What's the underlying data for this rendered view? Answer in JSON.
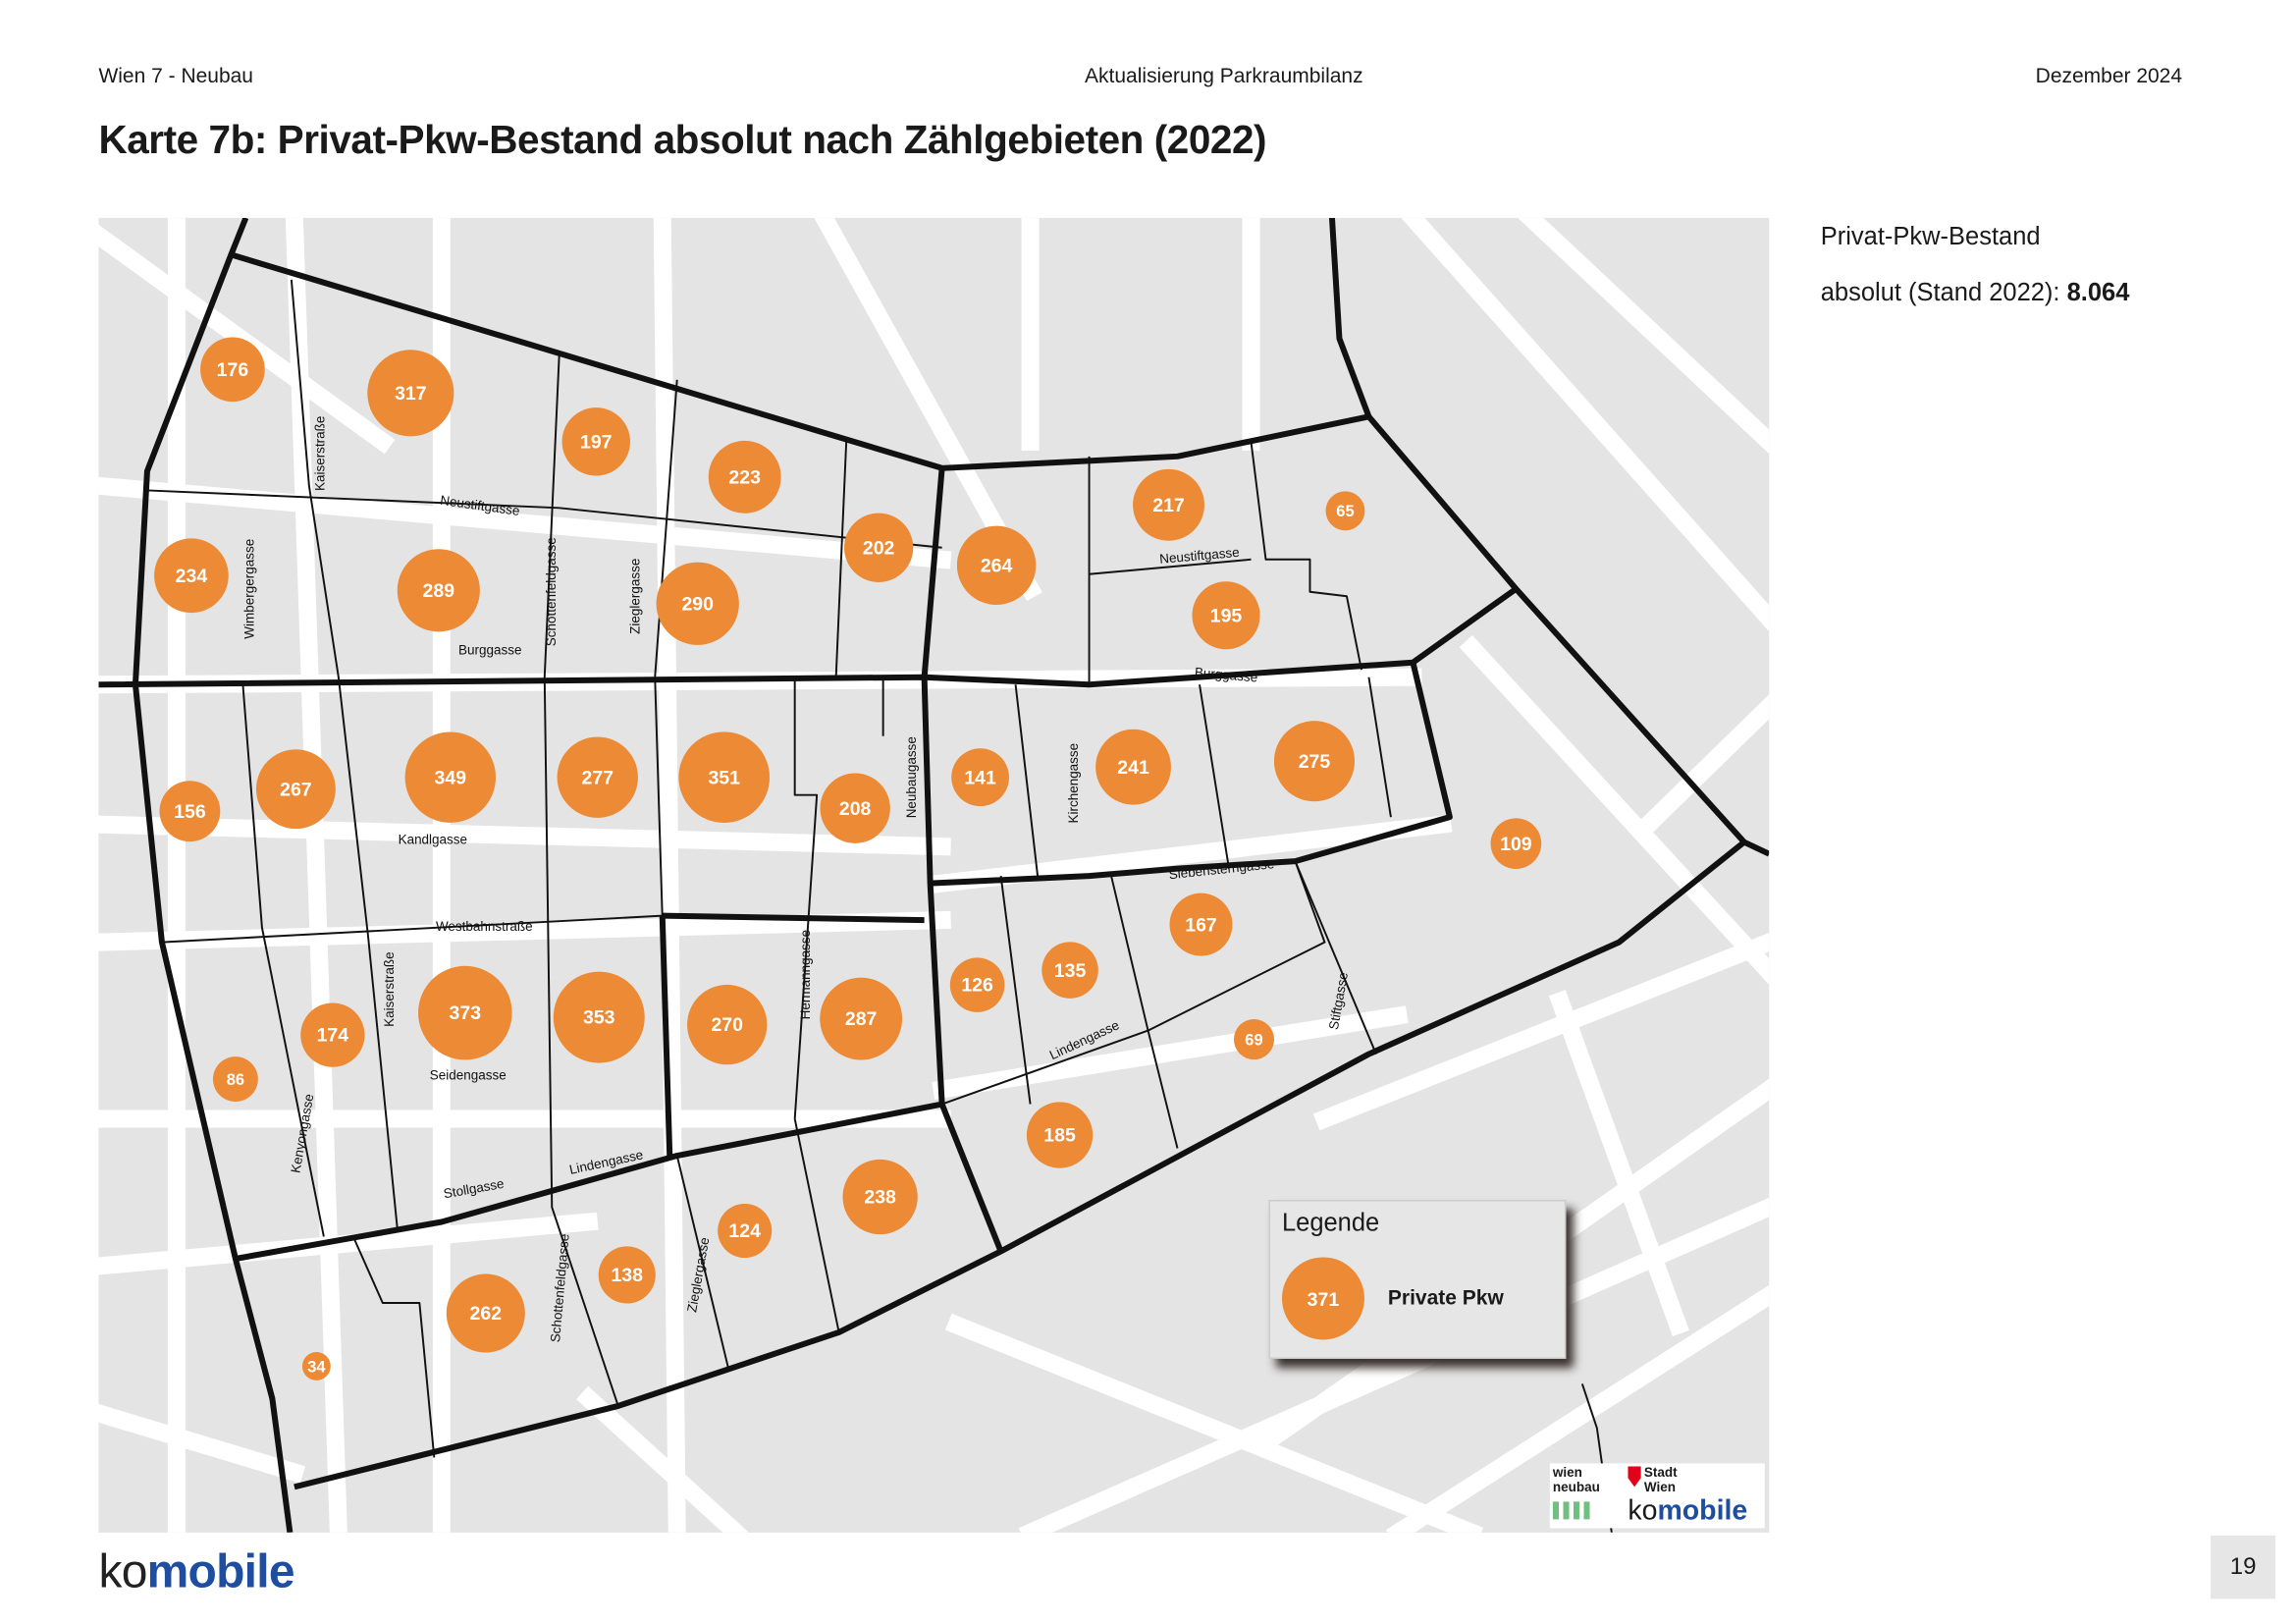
{
  "header": {
    "left": "Wien 7 - Neubau",
    "center": "Aktualisierung Parkraumbilanz",
    "right": "Dezember  2024"
  },
  "title": "Karte 7b: Privat-Pkw-Bestand absolut nach Zählgebieten (2022)",
  "summary": {
    "line1": "Privat-Pkw-Bestand",
    "line2": "absolut (Stand 2022): ",
    "total": "8.064"
  },
  "legend": {
    "title": "Legende",
    "sample_value": "371",
    "label": "Private Pkw"
  },
  "colors": {
    "bubble": "#ec8a35",
    "map_bg": "#e4e4e4",
    "road": "#ffffff",
    "boundary": "#111111",
    "brand_blue": "#1f4da0"
  },
  "zones": [
    176,
    317,
    197,
    223,
    234,
    289,
    290,
    202,
    264,
    217,
    65,
    195,
    156,
    267,
    349,
    277,
    351,
    208,
    141,
    241,
    275,
    109,
    167,
    126,
    135,
    174,
    86,
    373,
    353,
    270,
    287,
    69,
    185,
    238,
    124,
    138,
    262,
    34
  ],
  "streets": [
    "Kaiserstraße",
    "Neustiftgasse",
    "Wimbergergasse",
    "Schottenfeldgasse",
    "Zieglergasse",
    "Burggasse",
    "Neustiftgasse",
    "Burggasse",
    "Neubaugasse",
    "Kirchengasse",
    "Kandlgasse",
    "Siebensterngasse",
    "Westbahnstraße",
    "Hermanngasse",
    "Kaiserstraße",
    "Stiftgasse",
    "Kenyongasse",
    "Seidengasse",
    "Lindengasse",
    "Lindengasse",
    "Stollgasse",
    "Schottenfeldgasse",
    "Zieglergasse"
  ],
  "logos": {
    "wien_neubau": "wien neubau",
    "stadt_wien": "Stadt Wien",
    "komobile_ko": "ko",
    "komobile_mobile": "mobile"
  },
  "footer": {
    "brand_ko": "ko",
    "brand_mobile": "mobile",
    "page_number": "19"
  }
}
